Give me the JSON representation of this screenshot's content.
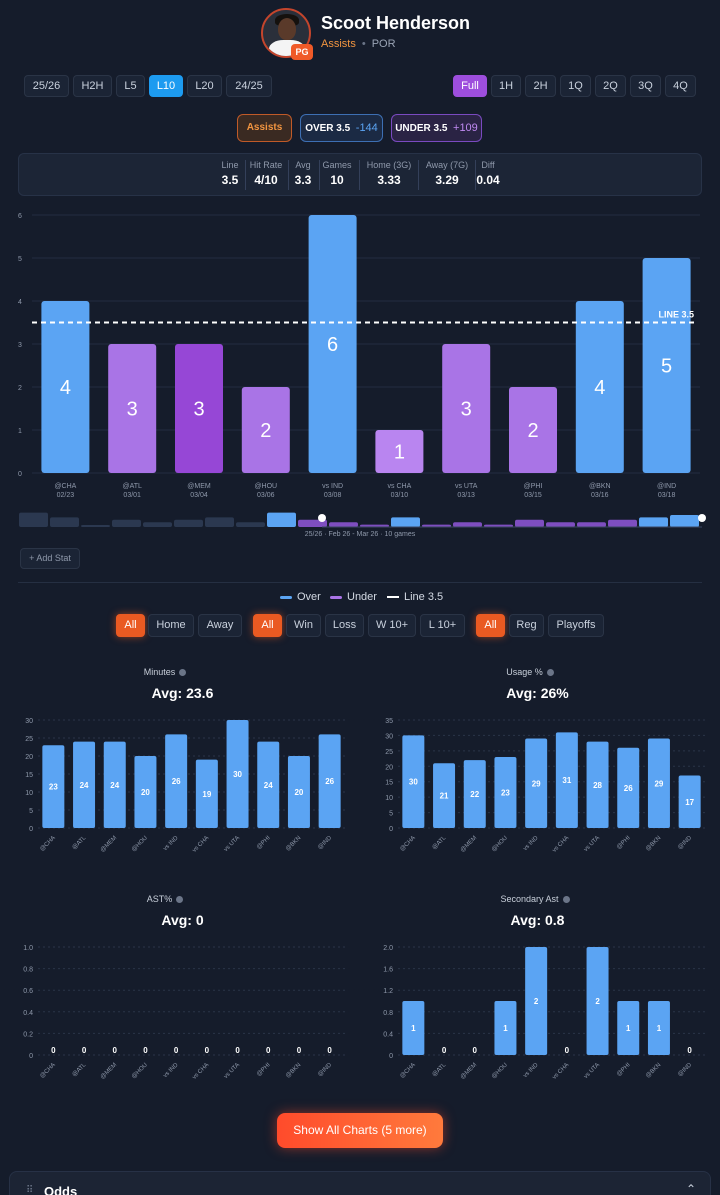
{
  "player": {
    "name": "Scoot Henderson",
    "position": "PG",
    "stat": "Assists",
    "team": "POR"
  },
  "range_tabs": [
    "25/26",
    "H2H",
    "L5",
    "L10",
    "L20",
    "24/25"
  ],
  "range_active": "L10",
  "period_tabs": [
    "Full",
    "1H",
    "2H",
    "1Q",
    "2Q",
    "3Q",
    "4Q"
  ],
  "period_active": "Full",
  "market": {
    "stat_label": "Assists",
    "over_label": "OVER 3.5",
    "over_odds": "-144",
    "under_label": "UNDER 3.5",
    "under_odds": "+109"
  },
  "summary": [
    {
      "label": "Line",
      "value": "3.5"
    },
    {
      "label": "Hit Rate",
      "value": "4/10"
    },
    {
      "label": "Avg",
      "value": "3.3"
    },
    {
      "label": "Games",
      "value": "10"
    },
    {
      "label": "Home (3G)",
      "value": "3.33"
    },
    {
      "label": "Away (7G)",
      "value": "3.29"
    },
    {
      "label": "Diff",
      "value": "0.04"
    }
  ],
  "colors": {
    "over": "#5ba4f3",
    "under": "#a974e6",
    "accent": "#ea5a22",
    "background": "#151c2b"
  },
  "chart_data": [
    {
      "type": "bar",
      "title": "",
      "categories": [
        "@CHA 02/23",
        "@ATL 03/01",
        "@MEM 03/04",
        "@HOU 03/06",
        "vs IND 03/08",
        "vs CHA 03/10",
        "vs UTA 03/13",
        "@PHI 03/15",
        "@BKN 03/16",
        "@IND 03/18"
      ],
      "opponents": [
        "@CHA",
        "@ATL",
        "@MEM",
        "@HOU",
        "vs IND",
        "vs CHA",
        "vs UTA",
        "@PHI",
        "@BKN",
        "@IND"
      ],
      "dates": [
        "02/23",
        "03/01",
        "03/04",
        "03/06",
        "03/08",
        "03/10",
        "03/13",
        "03/15",
        "03/16",
        "03/18"
      ],
      "values": [
        4,
        3,
        3,
        2,
        6,
        1,
        3,
        2,
        4,
        5
      ],
      "result": [
        "over",
        "under",
        "under",
        "under",
        "over",
        "under",
        "under",
        "under",
        "over",
        "over"
      ],
      "line": 3.5,
      "line_label": "LINE 3.5",
      "ylim": [
        0,
        6
      ],
      "yticks": [
        0,
        1,
        2,
        3,
        4,
        5,
        6
      ],
      "legend": [
        "Over",
        "Under",
        "Line 3.5"
      ]
    },
    {
      "type": "bar",
      "title": "Minutes",
      "avg": "Avg: 23.6",
      "categories": [
        "@CHA",
        "@ATL",
        "@MEM",
        "@HOU",
        "vs IND",
        "vs CHA",
        "vs UTA",
        "@PHI",
        "@BKN",
        "@IND"
      ],
      "values": [
        23,
        24,
        24,
        20,
        26,
        19,
        30,
        24,
        20,
        26
      ],
      "ylim": [
        0,
        30
      ],
      "yticks": [
        0,
        5,
        10,
        15,
        20,
        25,
        30
      ]
    },
    {
      "type": "bar",
      "title": "Usage %",
      "avg": "Avg: 26%",
      "categories": [
        "@CHA",
        "@ATL",
        "@MEM",
        "@HOU",
        "vs IND",
        "vs CHA",
        "vs UTA",
        "@PHI",
        "@BKN",
        "@IND"
      ],
      "values": [
        30,
        21,
        22,
        23,
        29,
        31,
        28,
        26,
        29,
        17
      ],
      "ylim": [
        0,
        35
      ],
      "yticks": [
        0,
        5,
        10,
        15,
        20,
        25,
        30,
        35
      ]
    },
    {
      "type": "bar",
      "title": "AST%",
      "avg": "Avg: 0",
      "categories": [
        "@CHA",
        "@ATL",
        "@MEM",
        "@HOU",
        "vs IND",
        "vs CHA",
        "vs UTA",
        "@PHI",
        "@BKN",
        "@IND"
      ],
      "values": [
        0,
        0,
        0,
        0,
        0,
        0,
        0,
        0,
        0,
        0
      ],
      "ylim": [
        0,
        1
      ],
      "yticks": [
        "0",
        "0.2",
        "0.4",
        "0.6",
        "0.8",
        "1.0"
      ]
    },
    {
      "type": "bar",
      "title": "Secondary Ast",
      "avg": "Avg: 0.8",
      "categories": [
        "@CHA",
        "@ATL",
        "@MEM",
        "@HOU",
        "vs IND",
        "vs CHA",
        "vs UTA",
        "@PHI",
        "@BKN",
        "@IND"
      ],
      "values": [
        1,
        0,
        0,
        1,
        2,
        0,
        2,
        1,
        1,
        0
      ],
      "ylim": [
        0,
        2
      ],
      "yticks": [
        "0",
        "0.4",
        "0.8",
        "1.2",
        "1.6",
        "2.0"
      ]
    }
  ],
  "timeline_caption": "25/26 · Feb 26 - Mar 26 · 10 games",
  "add_stat": "+ Add Stat",
  "legend": {
    "over": "Over",
    "under": "Under",
    "line": "Line 3.5"
  },
  "filters": {
    "venue": [
      "All",
      "Home",
      "Away"
    ],
    "outcome": [
      "All",
      "Win",
      "Loss",
      "W 10+",
      "L 10+"
    ],
    "season_type": [
      "All",
      "Reg",
      "Playoffs"
    ]
  },
  "show_all": "Show All Charts (5 more)",
  "odds_title": "Odds"
}
